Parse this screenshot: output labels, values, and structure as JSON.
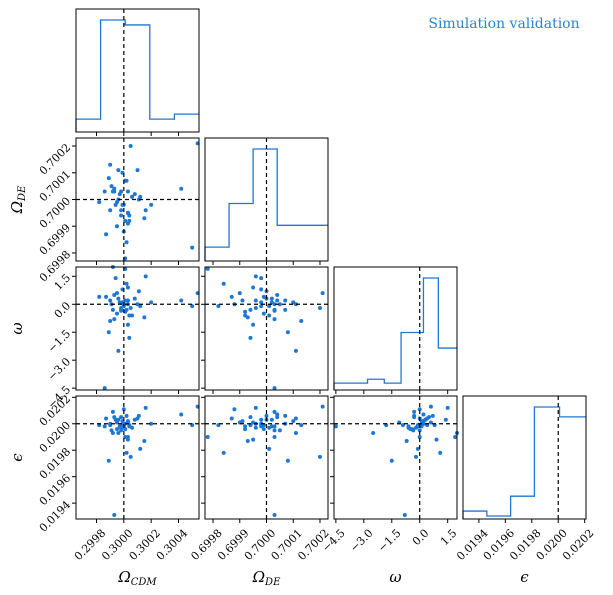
{
  "chart_data": {
    "type": "corner",
    "title": "Simulation validation",
    "color": "#1f77d4",
    "truth_color": "#000000",
    "parameters": [
      {
        "key": "ocdm",
        "label": "Ω",
        "sub": "CDM",
        "range": [
          0.29965,
          0.30055
        ],
        "truth": 0.3,
        "ticks": [
          "0.2998",
          "0.3000",
          "0.3002",
          "0.3004"
        ],
        "tick_values": [
          0.2998,
          0.3,
          0.3002,
          0.3004
        ]
      },
      {
        "key": "ode",
        "label": "Ω",
        "sub": "DE",
        "range": [
          0.69977,
          0.70023
        ],
        "truth": 0.7,
        "ticks": [
          "0.6998",
          "0.6999",
          "0.7000",
          "0.7001",
          "0.7002"
        ],
        "tick_values": [
          0.6998,
          0.6999,
          0.7,
          0.7001,
          0.7002
        ]
      },
      {
        "key": "w",
        "label": "ω",
        "sub": "",
        "range": [
          -4.6,
          2.0
        ],
        "truth": 0.0,
        "ticks": [
          "−4.5",
          "−3.0",
          "−1.5",
          "0.0",
          "1.5"
        ],
        "tick_values": [
          -4.5,
          -3.0,
          -1.5,
          0.0,
          1.5
        ]
      },
      {
        "key": "eps",
        "label": "ϵ",
        "sub": "",
        "range": [
          0.01928,
          0.02021
        ],
        "truth": 0.02,
        "ticks": [
          "0.0194",
          "0.0196",
          "0.0198",
          "0.0200",
          "0.0202"
        ],
        "tick_values": [
          0.0194,
          0.0196,
          0.0198,
          0.02,
          0.0202
        ]
      }
    ],
    "histograms": [
      {
        "param": "ocdm",
        "edges": [
          0.29965,
          0.29983,
          0.30001,
          0.30019,
          0.30037,
          0.30055
        ],
        "counts": [
          2,
          22,
          21,
          2,
          3
        ]
      },
      {
        "param": "ode",
        "edges": [
          0.69977,
          0.69986,
          0.69995,
          0.70004,
          0.70013,
          0.70023
        ],
        "counts": [
          2,
          10,
          20,
          6,
          6
        ]
      },
      {
        "param": "w",
        "edges": [
          -4.6,
          -3.7,
          -2.8,
          -1.9,
          -1.0,
          0.2,
          1.0,
          2.0
        ],
        "counts": [
          1,
          1,
          2,
          1,
          14,
          28,
          10
        ]
      },
      {
        "param": "eps",
        "edges": [
          0.01928,
          0.01946,
          0.01964,
          0.01982,
          0.02001,
          0.02021
        ],
        "counts": [
          1,
          0,
          4,
          22,
          20
        ]
      }
    ],
    "samples": {
      "ocdm": [
        0.2999,
        0.29998,
        0.29999,
        0.29995,
        0.30001,
        0.30003,
        0.29996,
        0.29998,
        0.30002,
        0.30004,
        0.29993,
        0.3,
        0.30001,
        0.29994,
        0.30006,
        0.29992,
        0.30003,
        0.2999,
        0.29987,
        0.30005,
        0.30016,
        0.29997,
        0.29996,
        0.30011,
        0.30003,
        0.30012,
        0.29995,
        0.30008,
        0.29982,
        0.3,
        0.29992,
        0.30004,
        0.29998,
        0.30003,
        0.29991,
        0.3002,
        0.30015,
        0.30042,
        0.3005,
        0.30054,
        0.29989,
        0.29986,
        0.3001,
        0.29999,
        0.30002,
        0.30001,
        0.29993
      ],
      "ode": [
        0.69996,
        0.70003,
        0.7001,
        0.6999,
        0.69992,
        0.70003,
        0.7,
        0.69996,
        0.69984,
        0.69994,
        0.70004,
        0.69998,
        0.70007,
        0.69998,
        0.70001,
        0.70003,
        0.69995,
        0.70013,
        0.69987,
        0.7002,
        0.69996,
        0.70002,
        0.70011,
        0.7,
        0.69991,
        0.70001,
        0.69999,
        0.70002,
        0.69999,
        0.69988,
        0.69976,
        0.69992,
        0.69994,
        0.69995,
        0.70005,
        0.69998,
        0.69993,
        0.70004,
        0.69982,
        0.70021,
        0.70008,
        0.70003,
        0.70011,
        0.69998,
        0.70007,
        0.69978,
        0.70003
      ],
      "w": [
        0.2,
        -0.35,
        0.1,
        0.6,
        -0.4,
        0.0,
        0.3,
        -0.2,
        1.1,
        -1.8,
        0.5,
        -0.1,
        0.2,
        1.4,
        -0.6,
        -0.3,
        0.9,
        -0.9,
        0.4,
        -0.2,
        1.5,
        0.1,
        -2.5,
        0.7,
        0.2,
        -0.1,
        -0.5,
        0.3,
        0.4,
        0.0,
        2.0,
        -0.6,
        -0.3,
        -1.1,
        0.0,
        0.1,
        -0.7,
        0.2,
        -0.1,
        0.6,
        -1.5,
        -4.5,
        0.0,
        0.8,
        -0.3,
        1.9,
        -0.8
      ],
      "eps": [
        0.02,
        0.01995,
        0.02002,
        0.02001,
        0.01996,
        0.0199,
        0.02003,
        0.01997,
        0.01978,
        0.01999,
        0.02005,
        0.01998,
        0.02,
        0.02003,
        0.01997,
        0.02009,
        0.01988,
        0.01999,
        0.02004,
        0.01975,
        0.02012,
        0.01998,
        0.01993,
        0.02006,
        0.02002,
        0.01981,
        0.01996,
        0.02003,
        0.01999,
        0.02011,
        0.01993,
        0.01998,
        0.02005,
        0.02001,
        0.01995,
        0.02,
        0.01987,
        0.02007,
        0.01999,
        0.02013,
        0.01972,
        0.01998,
        0.02004,
        0.01999,
        0.02006,
        0.0199,
        0.01931
      ]
    }
  }
}
